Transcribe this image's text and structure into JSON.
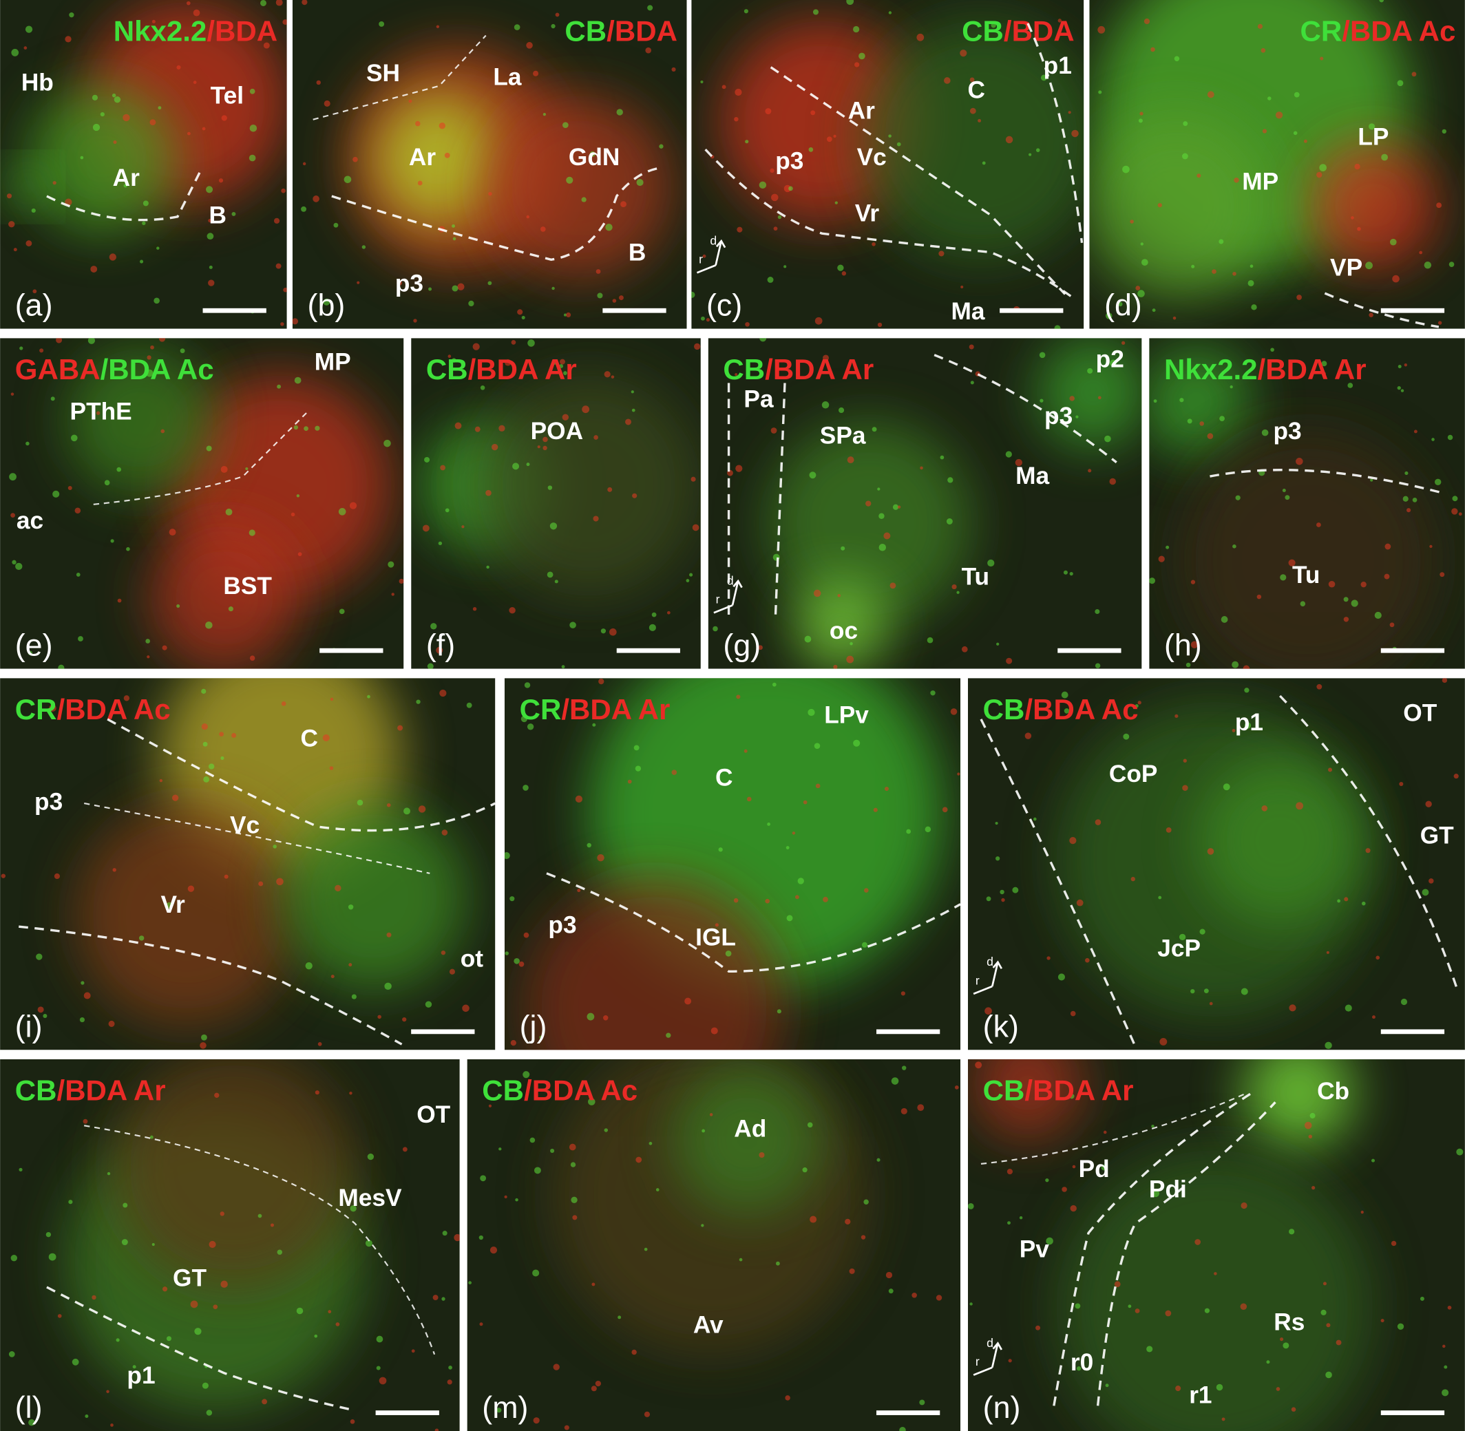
{
  "colors": {
    "green": "#3fe03a",
    "red": "#ea2a26",
    "label": "#ffffff",
    "background": "#1b2412"
  },
  "panels": [
    {
      "letter": "(a)",
      "title": [
        {
          "text": "Nkx2.2",
          "color": "green"
        },
        {
          "text": "/BDA",
          "color": "red"
        }
      ],
      "labels": [
        "Hb",
        "Tel",
        "Ar",
        "B"
      ]
    },
    {
      "letter": "(b)",
      "title": [
        {
          "text": "CB",
          "color": "green"
        },
        {
          "text": "/BDA",
          "color": "red"
        }
      ],
      "labels": [
        "SH",
        "La",
        "Ar",
        "GdN",
        "B",
        "p3"
      ]
    },
    {
      "letter": "(c)",
      "title": [
        {
          "text": "CB",
          "color": "green"
        },
        {
          "text": "/BDA",
          "color": "red"
        }
      ],
      "labels": [
        "Ar",
        "C",
        "p1",
        "p3",
        "Vc",
        "Vr",
        "Ma"
      ],
      "compass": [
        "d",
        "r"
      ]
    },
    {
      "letter": "(d)",
      "title": [
        {
          "text": "CR",
          "color": "green"
        },
        {
          "text": "/BDA Ac",
          "color": "red"
        }
      ],
      "labels": [
        "LP",
        "MP",
        "VP"
      ]
    },
    {
      "letter": "(e)",
      "title": [
        {
          "text": "GABA",
          "color": "red"
        },
        {
          "text": "/BDA Ac",
          "color": "green"
        }
      ],
      "labels": [
        "MP",
        "PThE",
        "ac",
        "BST"
      ]
    },
    {
      "letter": "(f)",
      "title": [
        {
          "text": "CB",
          "color": "green"
        },
        {
          "text": "/BDA Ar",
          "color": "red"
        }
      ],
      "labels": [
        "POA"
      ]
    },
    {
      "letter": "(g)",
      "title": [
        {
          "text": "CB",
          "color": "green"
        },
        {
          "text": "/BDA Ar",
          "color": "red"
        }
      ],
      "labels": [
        "p2",
        "Pa",
        "p3",
        "SPa",
        "Ma",
        "Tu",
        "oc"
      ],
      "compass": [
        "d",
        "r"
      ]
    },
    {
      "letter": "(h)",
      "title": [
        {
          "text": "Nkx2.2",
          "color": "green"
        },
        {
          "text": "/BDA Ar",
          "color": "red"
        }
      ],
      "labels": [
        "p3",
        "Tu"
      ]
    },
    {
      "letter": "(i)",
      "title": [
        {
          "text": "CR",
          "color": "green"
        },
        {
          "text": "/BDA Ac",
          "color": "red"
        }
      ],
      "labels": [
        "C",
        "p3",
        "Vc",
        "Vr",
        "ot"
      ]
    },
    {
      "letter": "(j)",
      "title": [
        {
          "text": "CR",
          "color": "green"
        },
        {
          "text": "/BDA Ar",
          "color": "red"
        }
      ],
      "labels": [
        "LPv",
        "C",
        "p3",
        "IGL"
      ]
    },
    {
      "letter": "(k)",
      "title": [
        {
          "text": "CB",
          "color": "green"
        },
        {
          "text": "/BDA Ac",
          "color": "red"
        }
      ],
      "labels": [
        "p1",
        "OT",
        "CoP",
        "GT",
        "JcP"
      ],
      "compass": [
        "d",
        "r"
      ]
    },
    {
      "letter": "(l)",
      "title": [
        {
          "text": "CB",
          "color": "green"
        },
        {
          "text": "/BDA Ar",
          "color": "red"
        }
      ],
      "labels": [
        "OT",
        "MesV",
        "GT",
        "p1"
      ]
    },
    {
      "letter": "(m)",
      "title": [
        {
          "text": "CB",
          "color": "green"
        },
        {
          "text": "/BDA Ac",
          "color": "red"
        }
      ],
      "labels": [
        "Ad",
        "Av"
      ]
    },
    {
      "letter": "(n)",
      "title": [
        {
          "text": "CB",
          "color": "green"
        },
        {
          "text": "/BDA Ar",
          "color": "red"
        }
      ],
      "labels": [
        "Cb",
        "Pd",
        "Pdi",
        "Pv",
        "Rs",
        "r0",
        "r1"
      ],
      "compass": [
        "d",
        "r"
      ]
    }
  ]
}
